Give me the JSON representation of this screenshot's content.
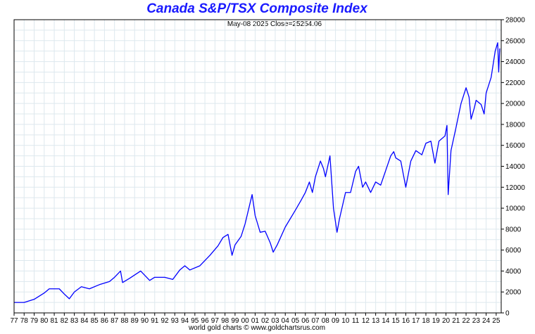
{
  "chart_data": {
    "type": "line",
    "title": "Canada S&P/TSX Composite Index",
    "subtitle": "May-08  2025   Close=25254.06",
    "footer": "world gold charts © www.goldchartsrus.com",
    "series": [
      {
        "values": [
          [
            1977.0,
            1000
          ],
          [
            1978.0,
            1000
          ],
          [
            1979.0,
            1300
          ],
          [
            1980.0,
            1900
          ],
          [
            1980.5,
            2300
          ],
          [
            1981.5,
            2300
          ],
          [
            1982.0,
            1800
          ],
          [
            1982.5,
            1350
          ],
          [
            1983.0,
            2000
          ],
          [
            1983.7,
            2500
          ],
          [
            1984.5,
            2300
          ],
          [
            1985.5,
            2700
          ],
          [
            1986.5,
            3000
          ],
          [
            1987.0,
            3400
          ],
          [
            1987.6,
            4000
          ],
          [
            1987.8,
            2900
          ],
          [
            1988.5,
            3300
          ],
          [
            1989.6,
            4000
          ],
          [
            1990.5,
            3100
          ],
          [
            1991.0,
            3400
          ],
          [
            1992.0,
            3400
          ],
          [
            1992.8,
            3200
          ],
          [
            1993.5,
            4100
          ],
          [
            1994.0,
            4500
          ],
          [
            1994.5,
            4100
          ],
          [
            1995.5,
            4500
          ],
          [
            1996.5,
            5500
          ],
          [
            1997.3,
            6400
          ],
          [
            1997.8,
            7200
          ],
          [
            1998.3,
            7500
          ],
          [
            1998.7,
            5500
          ],
          [
            1999.0,
            6500
          ],
          [
            1999.6,
            7300
          ],
          [
            2000.0,
            8500
          ],
          [
            2000.7,
            11300
          ],
          [
            2001.0,
            9300
          ],
          [
            2001.5,
            7700
          ],
          [
            2002.0,
            7800
          ],
          [
            2002.5,
            6700
          ],
          [
            2002.8,
            5800
          ],
          [
            2003.2,
            6500
          ],
          [
            2004.0,
            8200
          ],
          [
            2005.0,
            9800
          ],
          [
            2005.6,
            10800
          ],
          [
            2006.0,
            11500
          ],
          [
            2006.4,
            12500
          ],
          [
            2006.7,
            11500
          ],
          [
            2007.0,
            13000
          ],
          [
            2007.5,
            14500
          ],
          [
            2007.8,
            13800
          ],
          [
            2008.0,
            13000
          ],
          [
            2008.45,
            15000
          ],
          [
            2008.8,
            10000
          ],
          [
            2009.15,
            7700
          ],
          [
            2009.4,
            9000
          ],
          [
            2010.0,
            11500
          ],
          [
            2010.5,
            11500
          ],
          [
            2011.0,
            13500
          ],
          [
            2011.3,
            14000
          ],
          [
            2011.7,
            12000
          ],
          [
            2012.0,
            12500
          ],
          [
            2012.5,
            11500
          ],
          [
            2013.0,
            12500
          ],
          [
            2013.5,
            12200
          ],
          [
            2014.0,
            13600
          ],
          [
            2014.5,
            15000
          ],
          [
            2014.8,
            15400
          ],
          [
            2015.0,
            14800
          ],
          [
            2015.5,
            14500
          ],
          [
            2016.0,
            12000
          ],
          [
            2016.5,
            14500
          ],
          [
            2017.0,
            15500
          ],
          [
            2017.6,
            15100
          ],
          [
            2018.0,
            16200
          ],
          [
            2018.5,
            16400
          ],
          [
            2018.9,
            14300
          ],
          [
            2019.3,
            16400
          ],
          [
            2019.9,
            16900
          ],
          [
            2020.1,
            17900
          ],
          [
            2020.22,
            11300
          ],
          [
            2020.5,
            15500
          ],
          [
            2021.0,
            17700
          ],
          [
            2021.5,
            20000
          ],
          [
            2022.0,
            21500
          ],
          [
            2022.3,
            20600
          ],
          [
            2022.5,
            18500
          ],
          [
            2022.8,
            19500
          ],
          [
            2023.0,
            20300
          ],
          [
            2023.5,
            19900
          ],
          [
            2023.8,
            19000
          ],
          [
            2024.0,
            21000
          ],
          [
            2024.5,
            22500
          ],
          [
            2024.9,
            25000
          ],
          [
            2025.15,
            25800
          ],
          [
            2025.25,
            23000
          ],
          [
            2025.35,
            25254
          ]
        ]
      }
    ],
    "x_ticks": [
      "77",
      "78",
      "79",
      "80",
      "81",
      "82",
      "83",
      "84",
      "85",
      "86",
      "87",
      "88",
      "89",
      "90",
      "91",
      "92",
      "93",
      "94",
      "95",
      "96",
      "97",
      "98",
      "99",
      "00",
      "01",
      "02",
      "03",
      "04",
      "05",
      "06",
      "07",
      "08",
      "09",
      "10",
      "11",
      "12",
      "13",
      "14",
      "15",
      "16",
      "17",
      "18",
      "19",
      "20",
      "21",
      "22",
      "23",
      "24",
      "25"
    ],
    "x_tick_values": [
      1977,
      1978,
      1979,
      1980,
      1981,
      1982,
      1983,
      1984,
      1985,
      1986,
      1987,
      1988,
      1989,
      1990,
      1991,
      1992,
      1993,
      1994,
      1995,
      1996,
      1997,
      1998,
      1999,
      2000,
      2001,
      2002,
      2003,
      2004,
      2005,
      2006,
      2007,
      2008,
      2009,
      2010,
      2011,
      2012,
      2013,
      2014,
      2015,
      2016,
      2017,
      2018,
      2019,
      2020,
      2021,
      2022,
      2023,
      2024,
      2025
    ],
    "y_ticks": [
      0,
      2000,
      4000,
      6000,
      8000,
      10000,
      12000,
      14000,
      16000,
      18000,
      20000,
      22000,
      24000,
      26000,
      28000
    ],
    "xlim": [
      1977,
      2025.5
    ],
    "ylim": [
      0,
      28000
    ],
    "grid": true,
    "y_axis_side": "right",
    "colors": {
      "line": "#0000ff",
      "title": "#1a1aff",
      "grid": "#dde8ee",
      "axis": "#000000"
    }
  }
}
